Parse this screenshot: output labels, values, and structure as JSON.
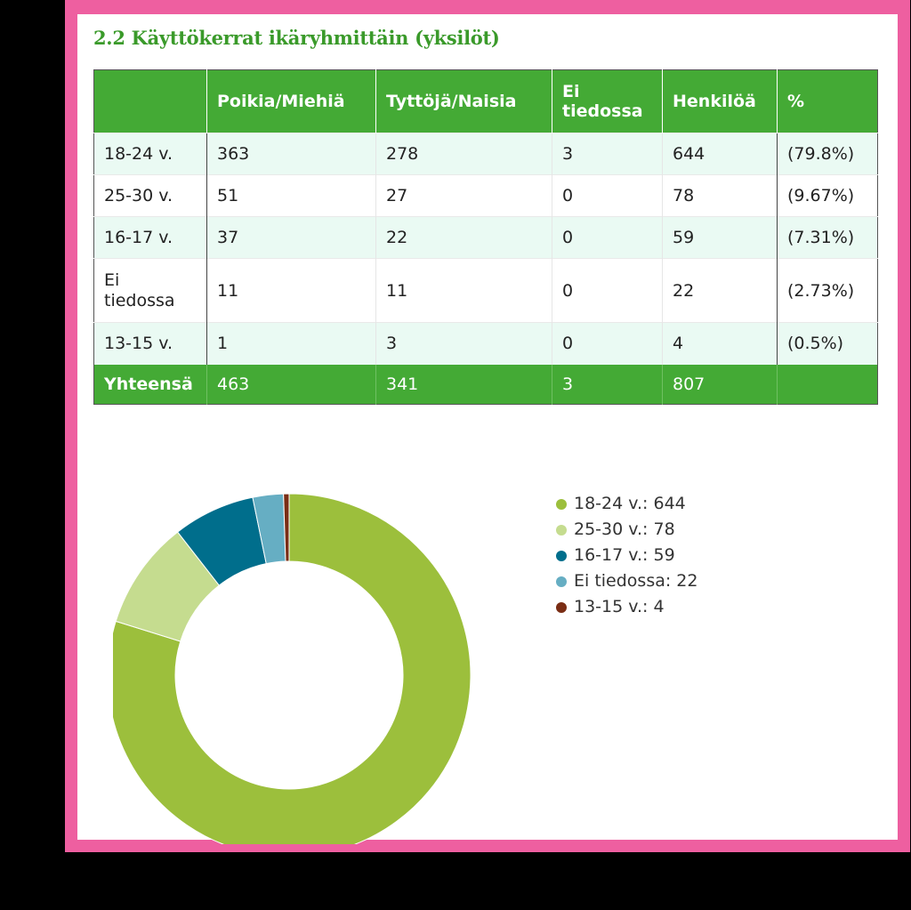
{
  "title": "2.2 Käyttökerrat ikäryhmittäin (yksilöt)",
  "table": {
    "headers": [
      "",
      "Poikia/Miehiä",
      "Tyttöjä/Naisia",
      "Ei tiedossa",
      "Henkilöä",
      "%"
    ],
    "rows": [
      [
        "18-24 v.",
        "363",
        "278",
        "3",
        "644",
        "(79.8%)"
      ],
      [
        "25-30 v.",
        "51",
        "27",
        "0",
        "78",
        "(9.67%)"
      ],
      [
        "16-17 v.",
        "37",
        "22",
        "0",
        "59",
        "(7.31%)"
      ],
      [
        "Ei tiedossa",
        "11",
        "11",
        "0",
        "22",
        "(2.73%)"
      ],
      [
        "13-15 v.",
        "1",
        "3",
        "0",
        "4",
        "(0.5%)"
      ]
    ],
    "total": [
      "Yhteensä",
      "463",
      "341",
      "3",
      "807",
      ""
    ]
  },
  "chart_data": {
    "type": "pie",
    "donut": true,
    "categories": [
      "18-24 v.",
      "25-30 v.",
      "16-17 v.",
      "Ei tiedossa",
      "13-15 v."
    ],
    "values": [
      644,
      78,
      59,
      22,
      4
    ],
    "colors": [
      "#9cbf3c",
      "#c5dc8f",
      "#006e8c",
      "#66aec3",
      "#7a2d14"
    ],
    "legend_labels": [
      "18-24 v.: 644",
      "25-30 v.: 78",
      "16-17 v.: 59",
      "Ei tiedossa: 22",
      "13-15 v.: 4"
    ],
    "legend_position": "right",
    "title": "",
    "start_angle_deg": 0,
    "direction": "clockwise"
  }
}
